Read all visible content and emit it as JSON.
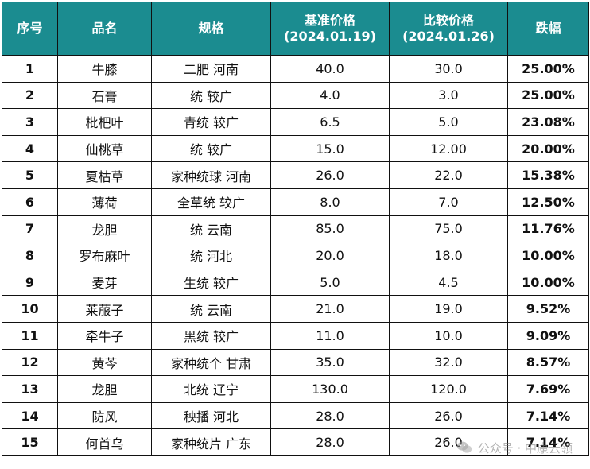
{
  "table": {
    "headers": {
      "no": "序号",
      "name": "品名",
      "spec": "规格",
      "base_price": "基准价格",
      "base_date": "(2024.01.19)",
      "compare_price": "比较价格",
      "compare_date": "(2024.01.26)",
      "change": "跌幅"
    },
    "rows": [
      {
        "no": "1",
        "name": "牛膝",
        "spec": "二肥 河南",
        "base": "40.0",
        "compare": "30.0",
        "change": "25.00%"
      },
      {
        "no": "2",
        "name": "石膏",
        "spec": "统 较广",
        "base": "4.0",
        "compare": "3.0",
        "change": "25.00%"
      },
      {
        "no": "3",
        "name": "枇杷叶",
        "spec": "青统 较广",
        "base": "6.5",
        "compare": "5.0",
        "change": "23.08%"
      },
      {
        "no": "4",
        "name": "仙桃草",
        "spec": "统 较广",
        "base": "15.0",
        "compare": "12.00",
        "change": "20.00%"
      },
      {
        "no": "5",
        "name": "夏枯草",
        "spec": "家种统球 河南",
        "base": "26.0",
        "compare": "22.0",
        "change": "15.38%"
      },
      {
        "no": "6",
        "name": "薄荷",
        "spec": "全草统 较广",
        "base": "8.0",
        "compare": "7.0",
        "change": "12.50%"
      },
      {
        "no": "7",
        "name": "龙胆",
        "spec": "统 云南",
        "base": "85.0",
        "compare": "75.0",
        "change": "11.76%"
      },
      {
        "no": "8",
        "name": "罗布麻叶",
        "spec": "统 河北",
        "base": "20.0",
        "compare": "18.0",
        "change": "10.00%"
      },
      {
        "no": "9",
        "name": "麦芽",
        "spec": "生统 较广",
        "base": "5.0",
        "compare": "4.5",
        "change": "10.00%"
      },
      {
        "no": "10",
        "name": "莱菔子",
        "spec": "统 云南",
        "base": "21.0",
        "compare": "19.0",
        "change": "9.52%"
      },
      {
        "no": "11",
        "name": "牵牛子",
        "spec": "黑统 较广",
        "base": "11.0",
        "compare": "10.0",
        "change": "9.09%"
      },
      {
        "no": "12",
        "name": "黄芩",
        "spec": "家种统个 甘肃",
        "base": "35.0",
        "compare": "32.0",
        "change": "8.57%"
      },
      {
        "no": "13",
        "name": "龙胆",
        "spec": "北统 辽宁",
        "base": "130.0",
        "compare": "120.0",
        "change": "7.69%"
      },
      {
        "no": "14",
        "name": "防风",
        "spec": "秧播 河北",
        "base": "28.0",
        "compare": "26.0",
        "change": "7.14%"
      },
      {
        "no": "15",
        "name": "何首乌",
        "spec": "家种统片 广东",
        "base": "28.0",
        "compare": "26.0",
        "change": "7.14%"
      }
    ]
  },
  "watermark": {
    "text": "公众号 · 中康云领",
    "icon": "wechat-icon"
  },
  "colors": {
    "header_bg": "#1b8c90",
    "header_text": "#ffffff",
    "change_text": "#1fae49",
    "border": "#111111"
  }
}
